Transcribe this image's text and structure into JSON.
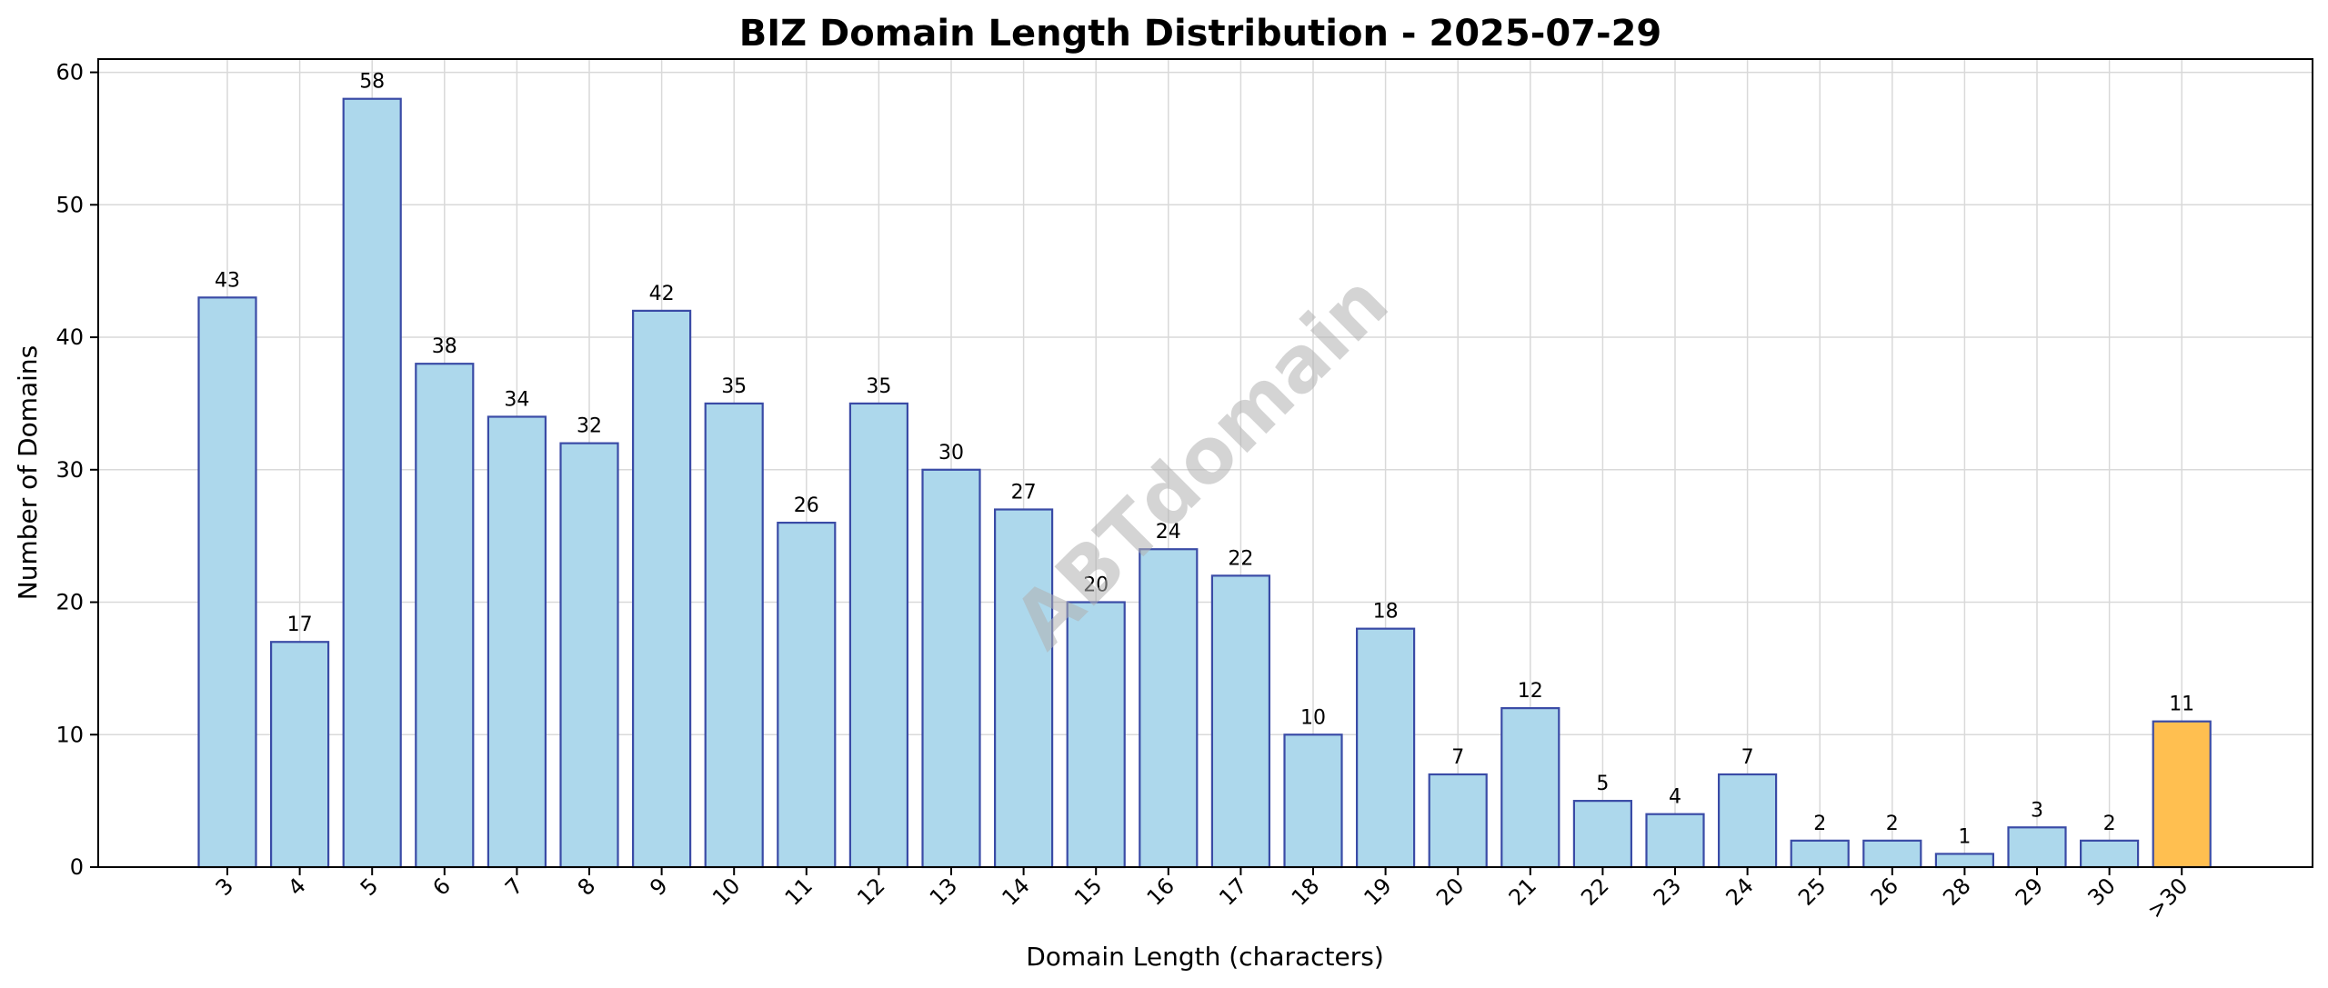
{
  "chart_data": {
    "type": "bar",
    "title": "BIZ Domain Length Distribution - 2025-07-29",
    "xlabel": "Domain Length (characters)",
    "ylabel": "Number of Domains",
    "categories": [
      "3",
      "4",
      "5",
      "6",
      "7",
      "8",
      "9",
      "10",
      "11",
      "12",
      "13",
      "14",
      "15",
      "16",
      "17",
      "18",
      "19",
      "20",
      "21",
      "22",
      "23",
      "24",
      "25",
      "26",
      "28",
      "29",
      "30",
      ">30"
    ],
    "values": [
      43,
      17,
      58,
      38,
      34,
      32,
      42,
      35,
      26,
      35,
      30,
      27,
      20,
      24,
      22,
      10,
      18,
      7,
      12,
      5,
      4,
      7,
      2,
      2,
      1,
      3,
      2,
      11
    ],
    "ylim": [
      0,
      61
    ],
    "yticks": [
      0,
      10,
      20,
      30,
      40,
      50,
      60
    ],
    "grid": true,
    "data_labels": true,
    "watermark": "ABTdomain",
    "colors": {
      "bar_fill": "#ADD8EC",
      "bar_edge": "#3A4BA6",
      "highlight_fill": "#FFBF50",
      "highlight_edge": "#3A4BA6",
      "highlight_category": ">30"
    }
  }
}
